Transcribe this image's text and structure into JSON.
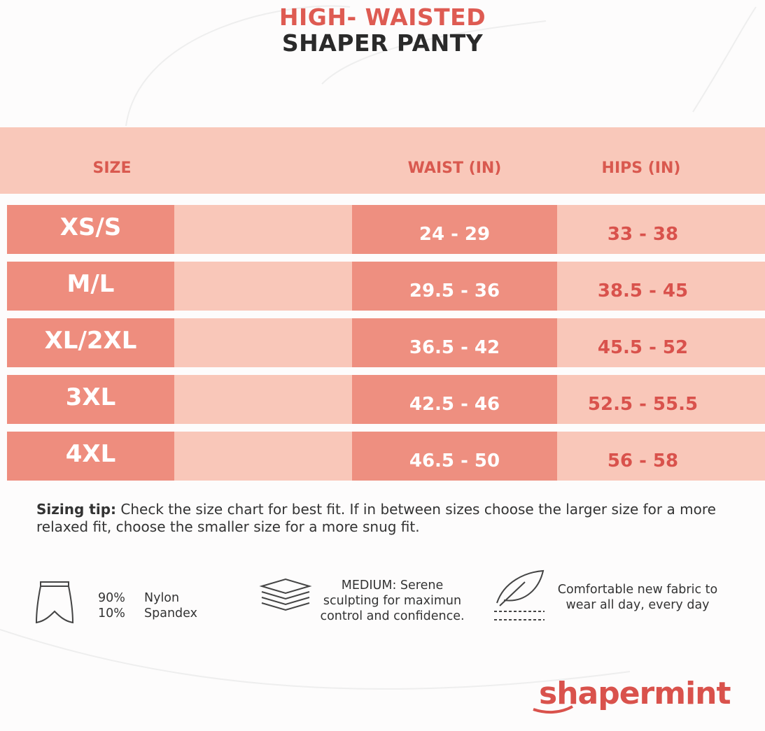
{
  "header": {
    "title_line1": "HIGH- WAISTED",
    "title_line2": "SHAPER PANTY"
  },
  "table": {
    "columns": [
      "SIZE",
      "WAIST (IN)",
      "HIPS (IN)"
    ],
    "rows": [
      [
        "XS/S",
        "24 - 29",
        "33 - 38"
      ],
      [
        "M/L",
        "29.5 - 36",
        "38.5 - 45"
      ],
      [
        "XL/2XL",
        "36.5 - 42",
        "45.5 - 52"
      ],
      [
        "3XL",
        "42.5 - 46",
        "52.5 - 55.5"
      ],
      [
        "4XL",
        "46.5 - 50",
        "56 - 58"
      ]
    ]
  },
  "sizing_tip": {
    "label": "Sizing tip:",
    "text": "Check the size chart for best fit. If in between sizes choose the larger size for a more relaxed fit, choose the smaller size for a more snug fit."
  },
  "features": {
    "material": {
      "percent_1": "90%",
      "fabric_1": "Nylon",
      "percent_2": "10%",
      "fabric_2": "Spandex"
    },
    "compression": "MEDIUM: Serene sculpting  for maximun control and confidence.",
    "comfort": "Comfortable new fabric to wear all day, every day"
  },
  "brand": "shapermint"
}
